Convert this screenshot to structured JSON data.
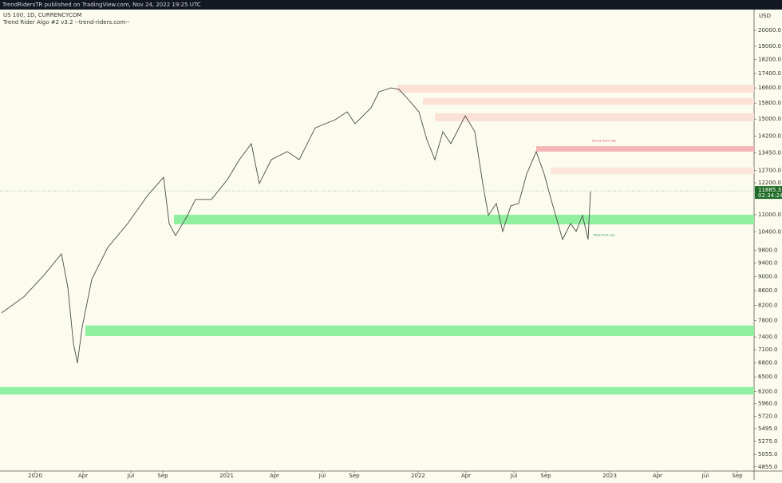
{
  "header": "TrendRidersTR published on TradingView.com, Nov 24, 2022 19:25 UTC",
  "chart_data": {
    "type": "line",
    "symbol": "US 100, 1D, CURRENCYCOM",
    "indicator": "Trend Rider Algo #2 v3.2 --trend-riders.com--",
    "currency": "USD",
    "log_scale": true,
    "color": "#4a4a4a",
    "x": [
      -2.1,
      -0.7,
      0.55,
      1.65,
      2.05,
      2.4,
      2.65,
      2.95,
      3.55,
      4.55,
      5.8,
      7.05,
      8.05,
      8.4,
      8.8,
      9.55,
      10.05,
      11.05,
      12.05,
      12.8,
      13.55,
      14.05,
      14.8,
      15.8,
      16.55,
      17.55,
      18.8,
      19.55,
      20.05,
      21.05,
      21.55,
      22.3,
      22.8,
      23.4,
      24.05,
      24.55,
      25.05,
      25.55,
      26.05,
      26.95,
      27.55,
      28.05,
      28.4,
      28.9,
      29.3,
      29.8,
      30.3,
      30.8,
      31.4,
      31.9,
      32.4,
      33.05,
      33.55,
      33.9,
      34.3,
      34.65,
      34.8
    ],
    "values": [
      8000,
      8430,
      9040,
      9690,
      8690,
      7250,
      6800,
      7640,
      8920,
      9890,
      10690,
      11710,
      12420,
      10690,
      10280,
      10980,
      11560,
      11560,
      12330,
      13150,
      13850,
      12170,
      13150,
      13500,
      13150,
      14580,
      14970,
      15360,
      14780,
      15560,
      16390,
      16600,
      16520,
      15970,
      15360,
      14030,
      13150,
      14400,
      13850,
      15160,
      14400,
      12170,
      10980,
      11410,
      10420,
      11320,
      11410,
      12550,
      13500,
      12550,
      11410,
      10150,
      10690,
      10420,
      10980,
      10150,
      11860
    ],
    "last_price": 11885.3,
    "countdown": "02:34:24",
    "price_tag_color": "#1e6b24",
    "zones": [
      {
        "start": 8.7,
        "from": 10660,
        "to": 11000,
        "color": "#90f0a0"
      },
      {
        "start": 3.15,
        "from": 7420,
        "to": 7680,
        "color": "#90f0a0"
      },
      {
        "start": -2.2,
        "from": 6140,
        "to": 6290,
        "color": "#90f0a0"
      },
      {
        "start": 22.7,
        "from": 16350,
        "to": 16770,
        "color": "#fbe1d6"
      },
      {
        "start": 24.3,
        "from": 15720,
        "to": 16050,
        "color": "#fbe1d6"
      },
      {
        "start": 25.05,
        "from": 14890,
        "to": 15280,
        "color": "#fbe1d6"
      },
      {
        "start": 31.4,
        "from": 13500,
        "to": 13740,
        "color": "#f8b5b5"
      },
      {
        "start": 32.3,
        "from": 12550,
        "to": 12820,
        "color": "#fbe6dc"
      }
    ],
    "annotations": [
      {
        "text": "Strong Pivot High",
        "x": 35.65,
        "y": 13980,
        "color": "#e05555"
      },
      {
        "text": "Weak Pivot Low",
        "x": 35.65,
        "y": 10300,
        "color": "#2a9a5a"
      }
    ],
    "xlim": [
      -2.2,
      45.05
    ],
    "xticks": [
      {
        "value": 0,
        "label": "2020"
      },
      {
        "value": 3,
        "label": "Apr"
      },
      {
        "value": 6,
        "label": "Jul"
      },
      {
        "value": 8,
        "label": "Sep"
      },
      {
        "value": 12,
        "label": "2021"
      },
      {
        "value": 15,
        "label": "Apr"
      },
      {
        "value": 18,
        "label": "Jul"
      },
      {
        "value": 20,
        "label": "Sep"
      },
      {
        "value": 24,
        "label": "2022"
      },
      {
        "value": 27,
        "label": "Apr"
      },
      {
        "value": 30,
        "label": "Jul"
      },
      {
        "value": 32,
        "label": "Sep"
      },
      {
        "value": 36,
        "label": "2023"
      },
      {
        "value": 39,
        "label": "Apr"
      },
      {
        "value": 42,
        "label": "Jul"
      },
      {
        "value": 44,
        "label": "Sep"
      }
    ],
    "ylim": [
      4790,
      21400
    ],
    "yticks": [
      {
        "value": 20000,
        "label": "20000.0"
      },
      {
        "value": 19000,
        "label": "19000.0"
      },
      {
        "value": 18200,
        "label": "18200.0"
      },
      {
        "value": 17400,
        "label": "17400.0"
      },
      {
        "value": 16600,
        "label": "16600.0"
      },
      {
        "value": 15800,
        "label": "15800.0"
      },
      {
        "value": 15000,
        "label": "15000.0"
      },
      {
        "value": 14200,
        "label": "14200.0"
      },
      {
        "value": 13450,
        "label": "13450.0"
      },
      {
        "value": 12700,
        "label": "12700.0"
      },
      {
        "value": 12200,
        "label": "12200.0"
      },
      {
        "value": 11000,
        "label": "11000.0"
      },
      {
        "value": 10400,
        "label": "10400.0"
      },
      {
        "value": 9800,
        "label": "9800.0"
      },
      {
        "value": 9400,
        "label": "9400.0"
      },
      {
        "value": 9000,
        "label": "9000.0"
      },
      {
        "value": 8600,
        "label": "8600.0"
      },
      {
        "value": 8200,
        "label": "8200.0"
      },
      {
        "value": 7800,
        "label": "7800.0"
      },
      {
        "value": 7400,
        "label": "7400.0"
      },
      {
        "value": 7100,
        "label": "7100.0"
      },
      {
        "value": 6800,
        "label": "6800.0"
      },
      {
        "value": 6500,
        "label": "6500.0"
      },
      {
        "value": 6200,
        "label": "6200.0"
      },
      {
        "value": 5960,
        "label": "5960.0"
      },
      {
        "value": 5720,
        "label": "5720.0"
      },
      {
        "value": 5495,
        "label": "5495.0"
      },
      {
        "value": 5275,
        "label": "5275.0"
      },
      {
        "value": 5055,
        "label": "5055.0"
      },
      {
        "value": 4855,
        "label": "4855.0"
      }
    ]
  }
}
